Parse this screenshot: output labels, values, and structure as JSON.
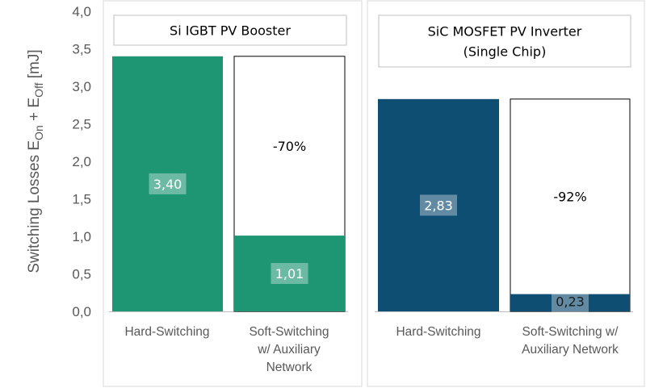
{
  "chart_data": {
    "type": "bar",
    "ylabel_main": "Switching Losses E",
    "ylabel_sub1": "On",
    "ylabel_mid": " + E",
    "ylabel_sub2": "Off",
    "ylabel_unit": " [mJ]",
    "ylim": [
      0,
      4.0
    ],
    "yticks": [
      "0,0",
      "0,5",
      "1,0",
      "1,5",
      "2,0",
      "2,5",
      "3,0",
      "3,5",
      "4,0"
    ],
    "grid": false,
    "panels": [
      {
        "title_lines": [
          "Si IGBT PV Booster"
        ],
        "color": "#1e9673",
        "bars": [
          {
            "category_lines": [
              "Hard-Switching"
            ],
            "value": 3.4,
            "value_label": "3,40"
          },
          {
            "category_lines": [
              "Soft-Switching",
              "w/ Auxiliary",
              "Network"
            ],
            "value": 1.01,
            "value_label": "1,01",
            "reference": 3.4,
            "reduction_label": "-70%"
          }
        ]
      },
      {
        "title_lines": [
          "SiC MOSFET PV Inverter",
          "(Single Chip)"
        ],
        "color": "#0e4e72",
        "bars": [
          {
            "category_lines": [
              "Hard-Switching"
            ],
            "value": 2.83,
            "value_label": "2,83"
          },
          {
            "category_lines": [
              "Soft-Switching w/",
              "Auxiliary Network"
            ],
            "value": 0.23,
            "value_label": "0,23",
            "reference": 2.83,
            "reduction_label": "-92%"
          }
        ]
      }
    ]
  }
}
